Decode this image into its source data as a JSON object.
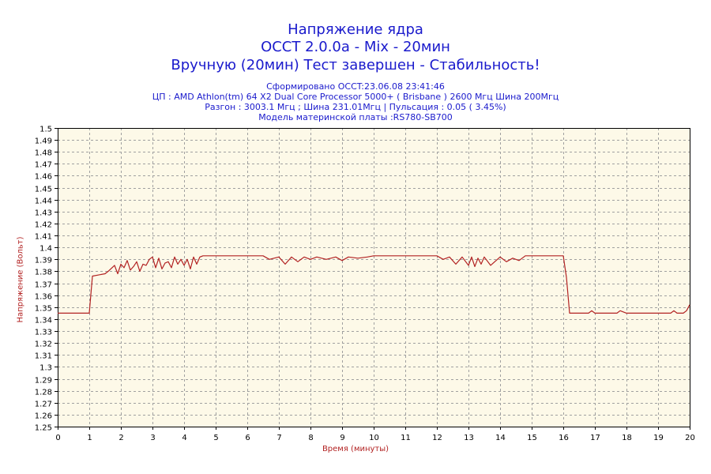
{
  "header": {
    "title_line1": "Напряжение ядра",
    "title_line2": "OCCT 2.0.0a - Mix - 20мин",
    "title_line3": "Вручную (20мин) Тест завершен - Стабильность!",
    "info_line1": "Сформировано OCCT:23.06.08 23:41:46",
    "info_line2": "ЦП : AMD Athlon(tm) 64 X2 Dual Core Processor 5000+ ( Brisbane ) 2600 Мгц Шина 200Мгц",
    "info_line3": "Разгон : 3003.1 Мгц ; Шина 231.01Мгц | Пульсация : 0.05 ( 3.45%)",
    "info_line4": "Модель материнской платы :RS780-SB700"
  },
  "colors": {
    "title": "#1a1acc",
    "axis_label": "#b22222",
    "series": "#b22222",
    "plot_background": "#fdf9e8",
    "grid": "#a0a0a0"
  },
  "chart_data": {
    "type": "line",
    "xlabel": "Время (минуты)",
    "ylabel": "Напряжение (Вольт)",
    "xlim": [
      0,
      20
    ],
    "ylim": [
      1.25,
      1.5
    ],
    "x_ticks": [
      0,
      1,
      2,
      3,
      4,
      5,
      6,
      7,
      8,
      9,
      10,
      11,
      12,
      13,
      14,
      15,
      16,
      17,
      18,
      19,
      20
    ],
    "y_ticks": [
      1.25,
      1.26,
      1.27,
      1.28,
      1.29,
      1.3,
      1.31,
      1.32,
      1.33,
      1.34,
      1.35,
      1.36,
      1.37,
      1.38,
      1.39,
      1.4,
      1.41,
      1.42,
      1.43,
      1.44,
      1.45,
      1.46,
      1.47,
      1.48,
      1.49,
      1.5
    ],
    "grid": true,
    "series": [
      {
        "x": [
          0,
          1,
          1.1,
          1.5,
          1.6,
          1.8,
          1.9,
          2,
          2.1,
          2.2,
          2.3,
          2.4,
          2.5,
          2.6,
          2.7,
          2.8,
          2.9,
          3,
          3.1,
          3.2,
          3.3,
          3.4,
          3.5,
          3.6,
          3.7,
          3.8,
          3.9,
          4,
          4.1,
          4.2,
          4.3,
          4.4,
          4.5,
          4.6,
          4.8,
          5,
          6,
          6.5,
          6.7,
          7,
          7.2,
          7.4,
          7.6,
          7.8,
          8,
          8.2,
          8.5,
          8.8,
          9,
          9.2,
          9.5,
          9.8,
          10,
          10.5,
          11,
          11.5,
          12,
          12.2,
          12.4,
          12.6,
          12.8,
          13,
          13.1,
          13.2,
          13.3,
          13.4,
          13.5,
          13.7,
          14,
          14.2,
          14.4,
          14.6,
          14.8,
          15,
          15.5,
          16,
          16.1,
          16.2,
          16.5,
          16.8,
          16.9,
          17,
          17.5,
          17.7,
          17.8,
          18,
          18.5,
          19,
          19.4,
          19.5,
          19.6,
          19.8,
          19.9,
          20
        ],
        "values": [
          1.345,
          1.345,
          1.376,
          1.378,
          1.38,
          1.385,
          1.378,
          1.386,
          1.383,
          1.389,
          1.381,
          1.384,
          1.388,
          1.38,
          1.386,
          1.385,
          1.39,
          1.392,
          1.383,
          1.391,
          1.382,
          1.387,
          1.388,
          1.383,
          1.392,
          1.386,
          1.39,
          1.385,
          1.39,
          1.382,
          1.392,
          1.386,
          1.392,
          1.393,
          1.393,
          1.393,
          1.393,
          1.393,
          1.39,
          1.392,
          1.386,
          1.392,
          1.388,
          1.392,
          1.39,
          1.392,
          1.39,
          1.392,
          1.389,
          1.392,
          1.391,
          1.392,
          1.393,
          1.393,
          1.393,
          1.393,
          1.393,
          1.39,
          1.392,
          1.386,
          1.392,
          1.385,
          1.392,
          1.384,
          1.391,
          1.386,
          1.392,
          1.385,
          1.392,
          1.388,
          1.391,
          1.389,
          1.393,
          1.393,
          1.393,
          1.393,
          1.375,
          1.345,
          1.345,
          1.345,
          1.347,
          1.345,
          1.345,
          1.345,
          1.347,
          1.345,
          1.345,
          1.345,
          1.345,
          1.347,
          1.345,
          1.345,
          1.347,
          1.352
        ]
      }
    ]
  }
}
